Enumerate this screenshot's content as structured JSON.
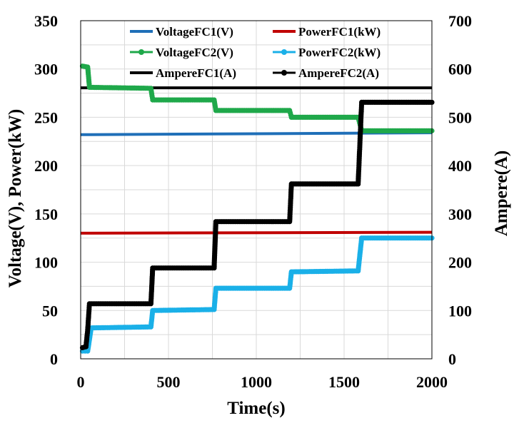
{
  "chart_data": {
    "type": "line",
    "xlabel": "Time(s)",
    "ylabel_left": "Voltage(V), Power(kW)",
    "ylabel_right": "Ampere(A)",
    "xlim": [
      0,
      2000
    ],
    "ylim_left": [
      0,
      350
    ],
    "ylim_right": [
      0,
      700
    ],
    "x_ticks": [
      0,
      500,
      1000,
      1500,
      2000
    ],
    "y_left_ticks": [
      0,
      50,
      100,
      150,
      200,
      250,
      300,
      350
    ],
    "y_right_ticks": [
      0,
      100,
      200,
      300,
      400,
      500,
      600,
      700
    ],
    "grid": true,
    "legend_position": "top",
    "series": [
      {
        "name": "VoltageFC1(V)",
        "axis": "left",
        "color": "#1f6fb8",
        "marker": "none",
        "x": [
          0,
          2000
        ],
        "y": [
          232,
          234
        ]
      },
      {
        "name": "PowerFC1(kW)",
        "axis": "left",
        "color": "#c00000",
        "marker": "none",
        "x": [
          0,
          2000
        ],
        "y": [
          130,
          131
        ]
      },
      {
        "name": "VoltageFC2(V)",
        "axis": "left",
        "color": "#1fa84a",
        "marker": "dot",
        "x": [
          10,
          40,
          50,
          400,
          410,
          760,
          770,
          1190,
          1200,
          1580,
          1600,
          2000
        ],
        "y": [
          303,
          302,
          281,
          280,
          268,
          268,
          257,
          257,
          250,
          250,
          236,
          236
        ]
      },
      {
        "name": "PowerFC2(kW)",
        "axis": "left",
        "color": "#1ab0e8",
        "marker": "dot",
        "x": [
          10,
          40,
          60,
          400,
          410,
          760,
          770,
          1190,
          1200,
          1580,
          1600,
          2000
        ],
        "y": [
          8,
          8,
          32,
          33,
          50,
          51,
          73,
          73,
          90,
          91,
          125,
          125
        ]
      },
      {
        "name": "AmpereFC1(A)",
        "axis": "right",
        "color": "#000000",
        "marker": "none",
        "x": [
          0,
          2000
        ],
        "y": [
          561,
          561
        ]
      },
      {
        "name": "AmpereFC2(A)",
        "axis": "right",
        "color": "#000000",
        "marker": "dot",
        "x": [
          10,
          30,
          40,
          50,
          400,
          410,
          760,
          770,
          1190,
          1200,
          1580,
          1600,
          2000
        ],
        "y": [
          23,
          25,
          60,
          114,
          114,
          188,
          188,
          284,
          284,
          362,
          362,
          531,
          531
        ]
      }
    ]
  }
}
